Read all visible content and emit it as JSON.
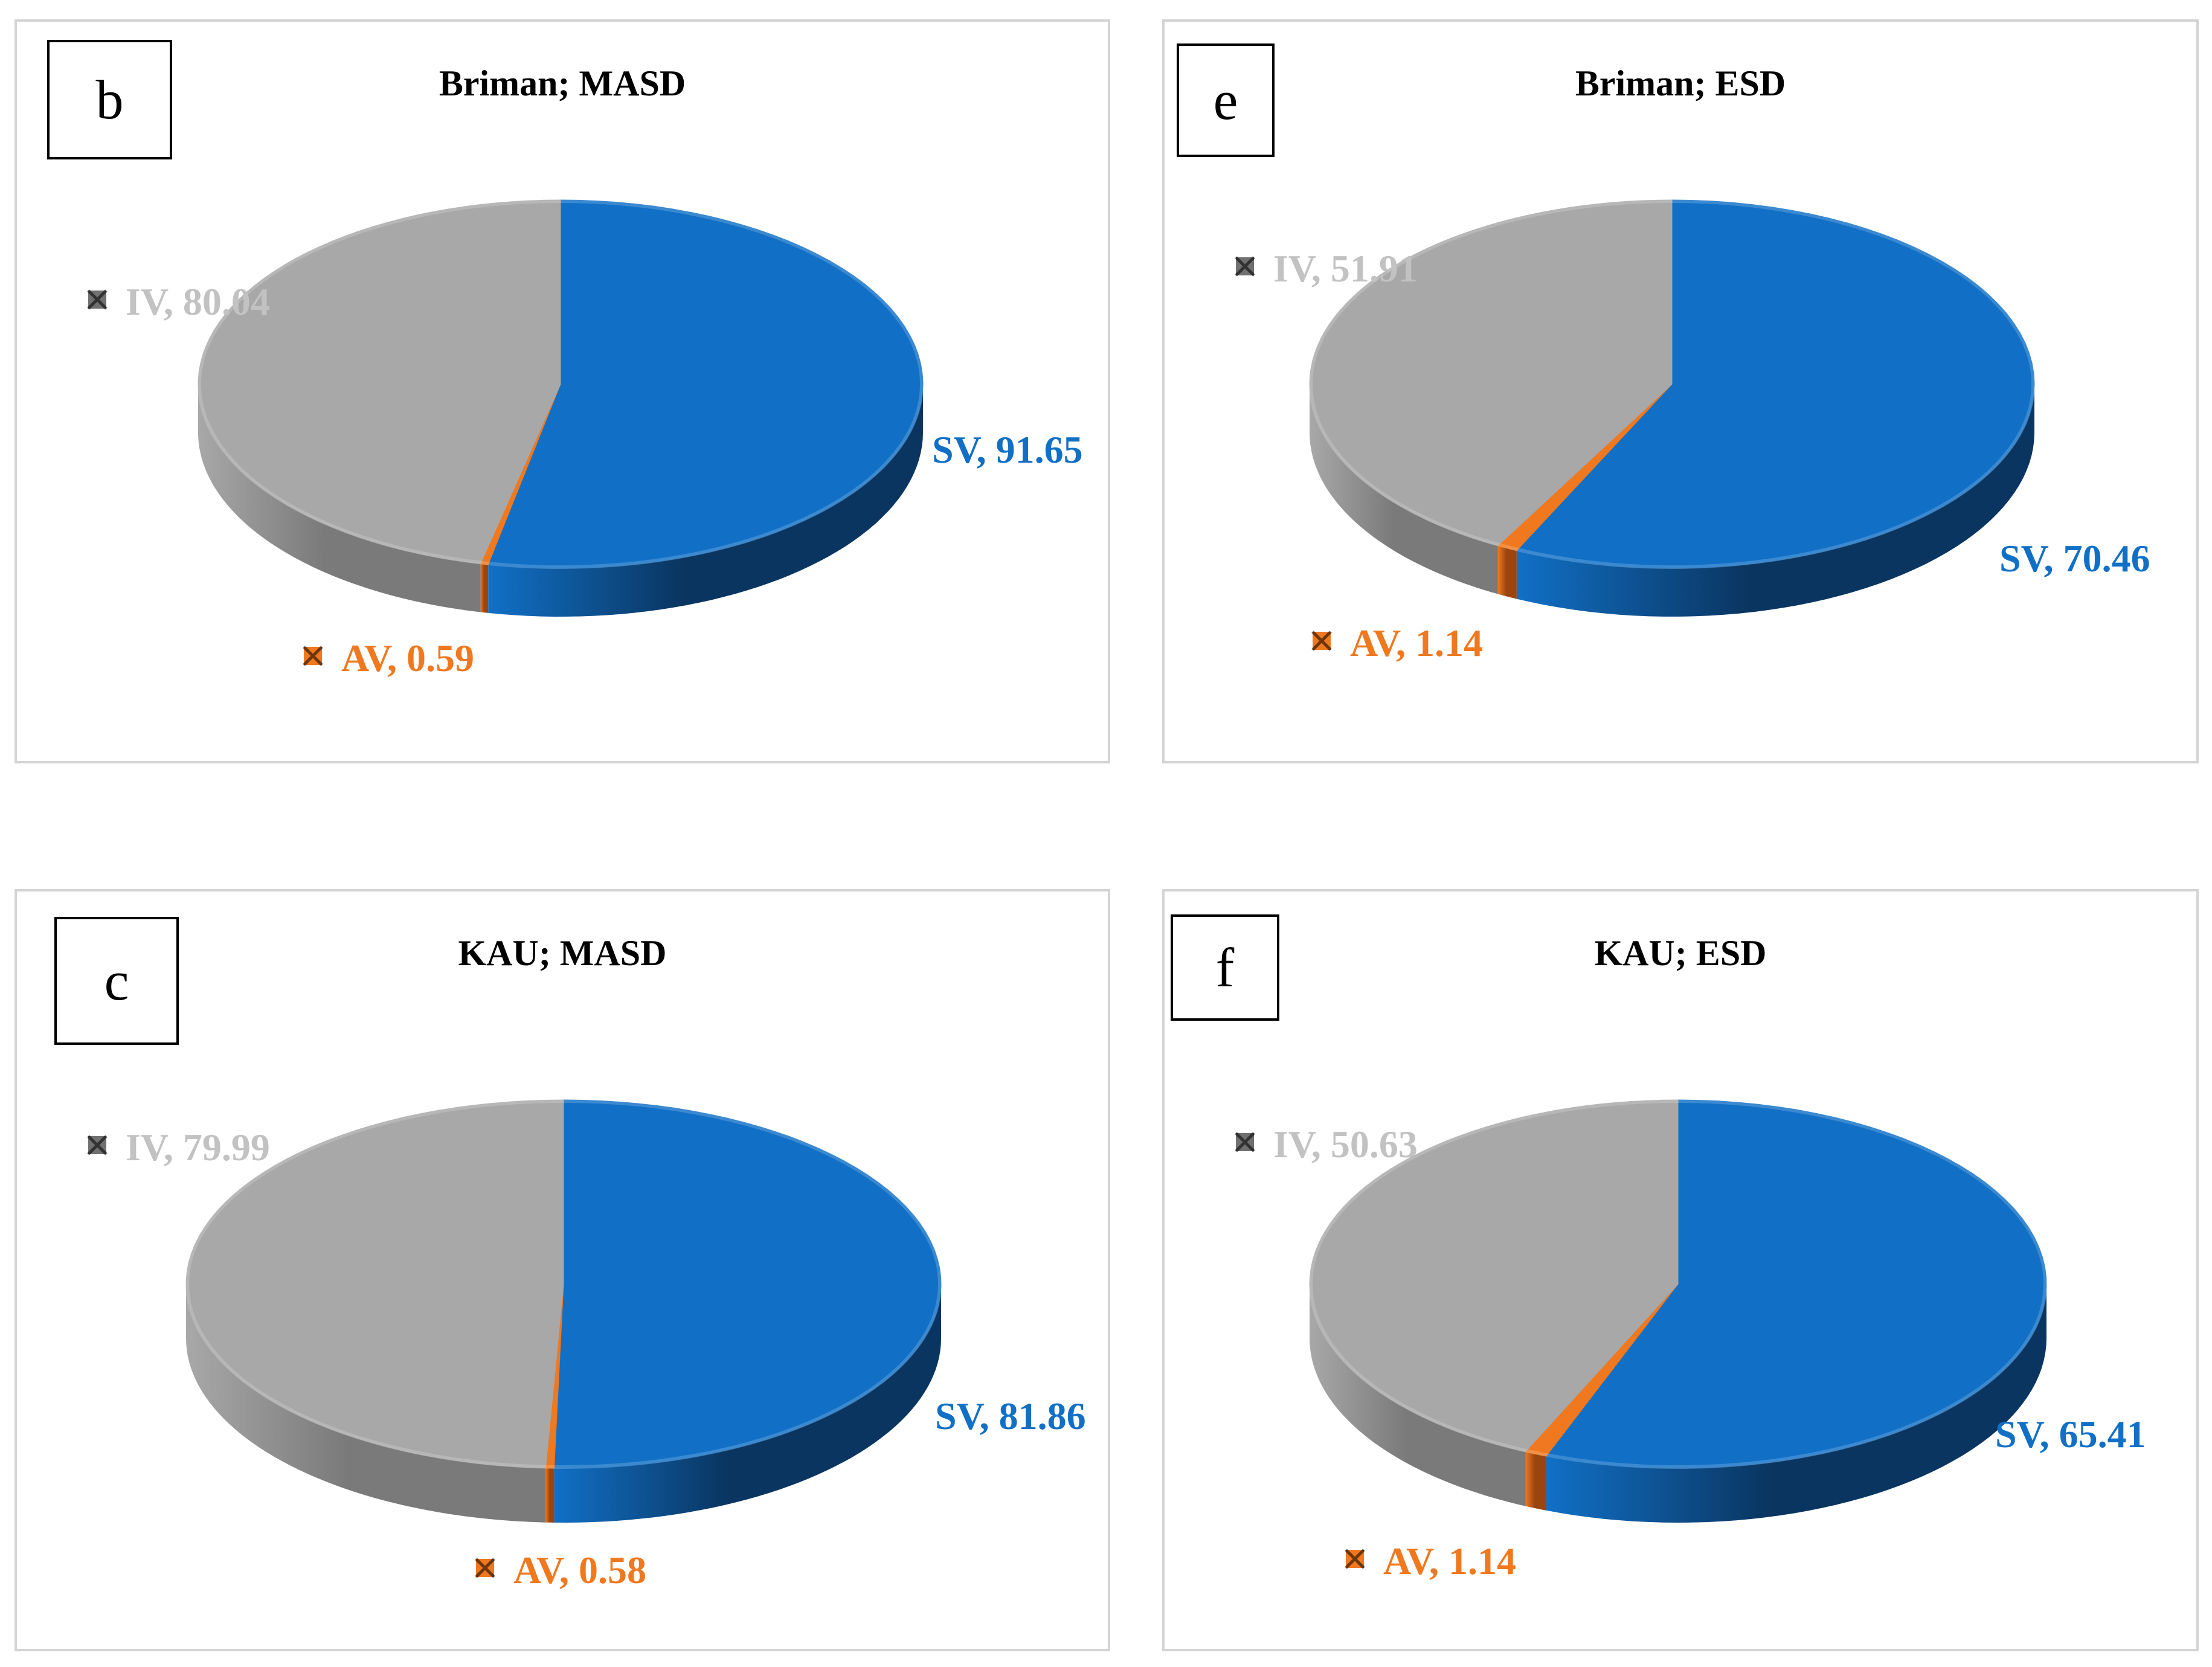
{
  "chart_data": [
    {
      "type": "pie",
      "panel_letter": "b",
      "title": "Briman; MASD",
      "slices": [
        {
          "name": "SV",
          "value": 91.65,
          "text": "SV, 91.65"
        },
        {
          "name": "AV",
          "value": 0.59,
          "text": "AV, 0.59"
        },
        {
          "name": "IV",
          "value": 80.04,
          "text": "IV, 80.04"
        }
      ]
    },
    {
      "type": "pie",
      "panel_letter": "e",
      "title": "Briman; ESD",
      "slices": [
        {
          "name": "SV",
          "value": 70.46,
          "text": "SV, 70.46"
        },
        {
          "name": "AV",
          "value": 1.14,
          "text": "AV, 1.14"
        },
        {
          "name": "IV",
          "value": 51.91,
          "text": "IV, 51.91"
        }
      ]
    },
    {
      "type": "pie",
      "panel_letter": "c",
      "title": "KAU; MASD",
      "slices": [
        {
          "name": "SV",
          "value": 81.86,
          "text": "SV, 81.86"
        },
        {
          "name": "AV",
          "value": 0.58,
          "text": "AV, 0.58"
        },
        {
          "name": "IV",
          "value": 79.99,
          "text": "IV, 79.99"
        }
      ]
    },
    {
      "type": "pie",
      "panel_letter": "f",
      "title": "KAU; ESD",
      "slices": [
        {
          "name": "SV",
          "value": 65.41,
          "text": "SV, 65.41"
        },
        {
          "name": "AV",
          "value": 1.14,
          "text": "AV, 1.14"
        },
        {
          "name": "IV",
          "value": 50.63,
          "text": "IV, 50.63"
        }
      ]
    }
  ],
  "colors": {
    "SV": "#1170c6",
    "AV": "#f0781e",
    "IV": "#a8a8a8",
    "SV_side": "#0a3560",
    "AV_side": "#9a4510",
    "IV_side": "#7a7a7a",
    "IV_label": "#c2c2c2"
  }
}
